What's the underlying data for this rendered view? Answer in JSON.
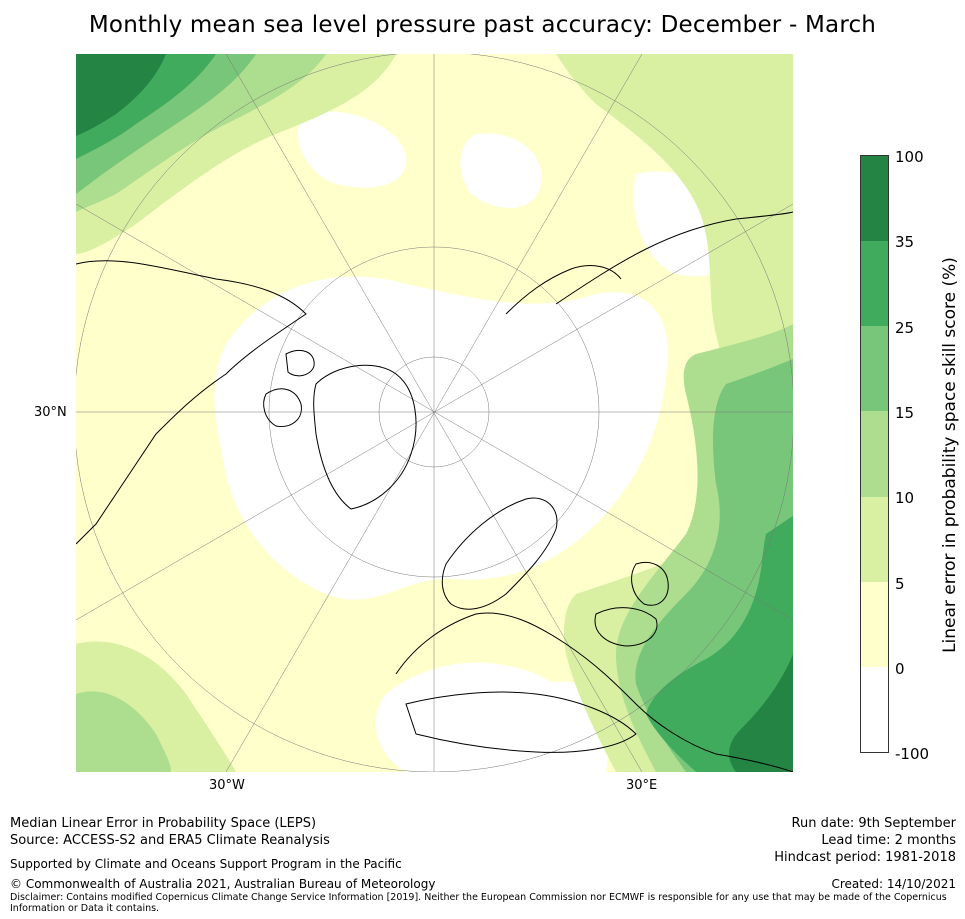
{
  "title": "Monthly mean sea level pressure past accuracy: December - March",
  "map": {
    "lat_label": "30°N",
    "lon_labels": [
      "30°W",
      "30°E"
    ]
  },
  "colorbar": {
    "label": "Linear error in probability space skill score (%)",
    "ticks": [
      "100",
      "35",
      "25",
      "15",
      "10",
      "5",
      "0",
      "-100"
    ],
    "colors": [
      "#238443",
      "#41ab5d",
      "#78c679",
      "#addd8e",
      "#d9f0a3",
      "#ffffcc",
      "#ffffff"
    ]
  },
  "footer": {
    "left_line1": "Median Linear Error in Probability Space (LEPS)",
    "left_line2": "Source: ACCESS-S2 and ERA5 Climate Reanalysis",
    "support": "Supported by Climate and Oceans Support Program in the Pacific",
    "copyright": "© Commonwealth of Australia 2021, Australian Bureau of Meteorology",
    "disclaimer_line1": "Disclaimer: Contains modified Copernicus Climate Change Service Information [2019]. Neither the European Commission nor ECMWF is responsible for any use that may be made of the Copernicus",
    "disclaimer_line2": "Information or Data it contains.",
    "run_date": "Run date: 9th September",
    "lead_time": "Lead time: 2 months",
    "hindcast": "Hindcast period: 1981-2018",
    "created": "Created: 14/10/2021"
  }
}
